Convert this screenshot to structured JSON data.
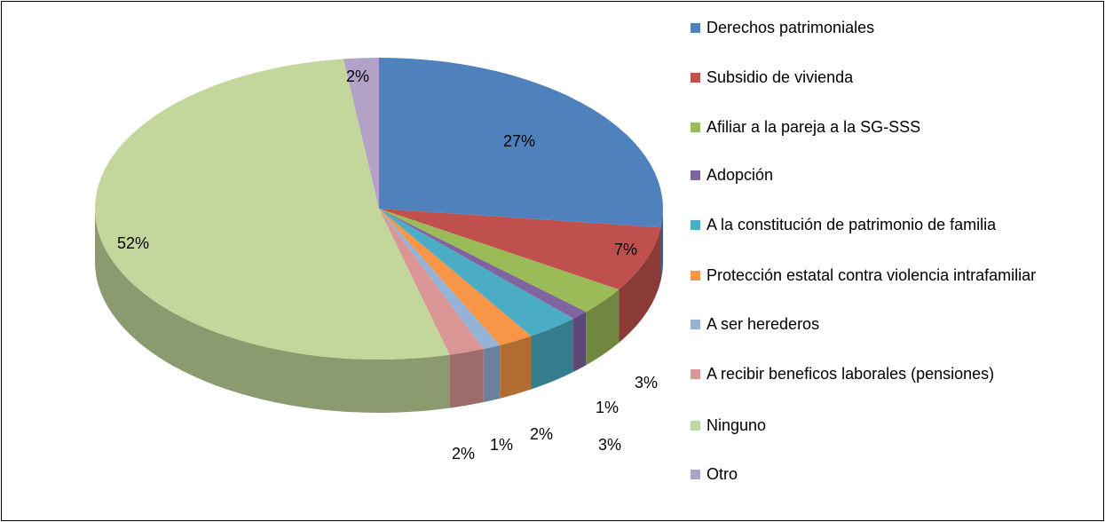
{
  "chart_data": {
    "type": "pie",
    "categories": [
      "Derechos patrimoniales",
      "Subsidio de vivienda",
      "Afiliar a la pareja a la SG-SSS",
      "Adopción",
      "A la constitución de patrimonio de familia",
      "Protección estatal contra violencia intrafamiliar",
      "A ser herederos",
      "A recibir beneficos laborales (pensiones)",
      "Ninguno",
      "Otro"
    ],
    "values": [
      27,
      7,
      3,
      1,
      3,
      2,
      1,
      2,
      52,
      2
    ],
    "value_labels": [
      "27%",
      "7%",
      "3%",
      "1%",
      "3%",
      "2%",
      "1%",
      "2%",
      "52%",
      "2%"
    ],
    "colors": [
      "#4F81BD",
      "#C0504D",
      "#9BBB59",
      "#8064A2",
      "#4BACC6",
      "#F79646",
      "#95B3D7",
      "#D99694",
      "#C3D69B",
      "#B3A2C7"
    ],
    "legend": "right"
  }
}
